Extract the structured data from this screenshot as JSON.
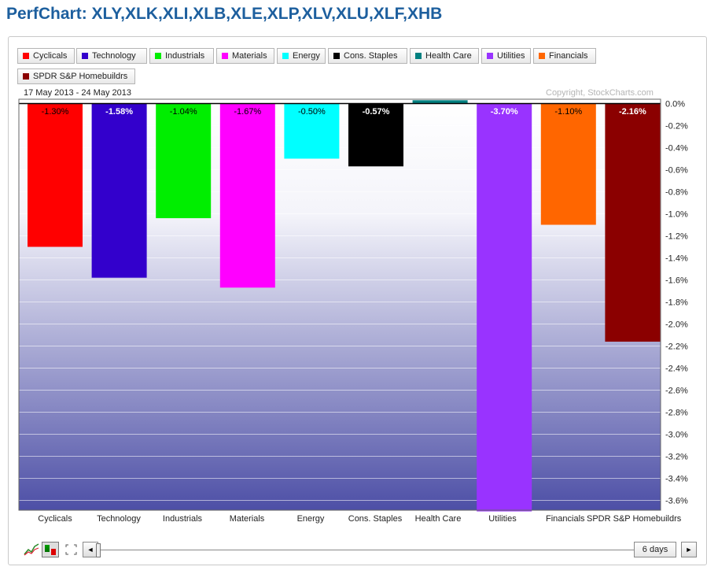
{
  "page_title": "PerfChart: XLY,XLK,XLI,XLB,XLE,XLP,XLV,XLU,XLF,XHB",
  "date_range": "17 May 2013 - 24 May 2013",
  "copyright": "Copyright, StockCharts.com",
  "controls": {
    "period_label": "6 days",
    "prev_arrow": "◄",
    "next_arrow": "►"
  },
  "icons": [
    "line-chart-icon",
    "histogram-icon",
    "fullscreen-icon"
  ],
  "legend": [
    {
      "label": "Cyclicals",
      "color": "#ff0000"
    },
    {
      "label": "Technology",
      "color": "#3300cc"
    },
    {
      "label": "Industrials",
      "color": "#00ee00"
    },
    {
      "label": "Materials",
      "color": "#ff00ff"
    },
    {
      "label": "Energy",
      "color": "#00ffff"
    },
    {
      "label": "Cons. Staples",
      "color": "#000000"
    },
    {
      "label": "Health Care",
      "color": "#008080"
    },
    {
      "label": "Utilities",
      "color": "#9933ff"
    },
    {
      "label": "Financials",
      "color": "#ff6600"
    },
    {
      "label": "SPDR S&P Homebuildrs",
      "color": "#8b0000"
    }
  ],
  "chart_data": {
    "type": "bar",
    "categories": [
      "Cyclicals",
      "Technology",
      "Industrials",
      "Materials",
      "Energy",
      "Cons. Staples",
      "Health Care",
      "Utilities",
      "Financials",
      "SPDR S&P Homebuildrs"
    ],
    "x_tick_labels": [
      "Cyclicals",
      "Technology",
      "Industrials",
      "Materials",
      "Energy",
      "Cons. Staples",
      "Health Care",
      "Utilities",
      "Financials",
      "SPDR S&P Homebuildrs"
    ],
    "values": [
      -1.3,
      -1.58,
      -1.04,
      -1.67,
      -0.5,
      -0.57,
      0.03,
      -3.7,
      -1.1,
      -2.16
    ],
    "data_labels": [
      "-1.30%",
      "-1.58%",
      "-1.04%",
      "-1.67%",
      "-0.50%",
      "-0.57%",
      "",
      "-3.70%",
      "-1.10%",
      "-2.16%"
    ],
    "label_colors": [
      "#000000",
      "#ffffff",
      "#000000",
      "#000000",
      "#000000",
      "#ffffff",
      "#000000",
      "#ffffff",
      "#000000",
      "#ffffff"
    ],
    "colors": [
      "#ff0000",
      "#3300cc",
      "#00ee00",
      "#ff00ff",
      "#00ffff",
      "#000000",
      "#008080",
      "#9933ff",
      "#ff6600",
      "#8b0000"
    ],
    "ylim": [
      -3.7,
      0.05
    ],
    "y_ticks": [
      0.0,
      -0.2,
      -0.4,
      -0.6,
      -0.8,
      -1.0,
      -1.2,
      -1.4,
      -1.6,
      -1.8,
      -2.0,
      -2.2,
      -2.4,
      -2.6,
      -2.8,
      -3.0,
      -3.2,
      -3.4,
      -3.6
    ],
    "y_tick_labels": [
      "0.0%",
      "-0.2%",
      "-0.4%",
      "-0.6%",
      "-0.8%",
      "-1.0%",
      "-1.2%",
      "-1.4%",
      "-1.6%",
      "-1.8%",
      "-2.0%",
      "-2.2%",
      "-2.4%",
      "-2.6%",
      "-2.8%",
      "-3.0%",
      "-3.2%",
      "-3.4%",
      "-3.6%"
    ],
    "title": "",
    "xlabel": "",
    "ylabel": "",
    "grid": true,
    "y_axis_side": "right",
    "legend_position": "top"
  }
}
